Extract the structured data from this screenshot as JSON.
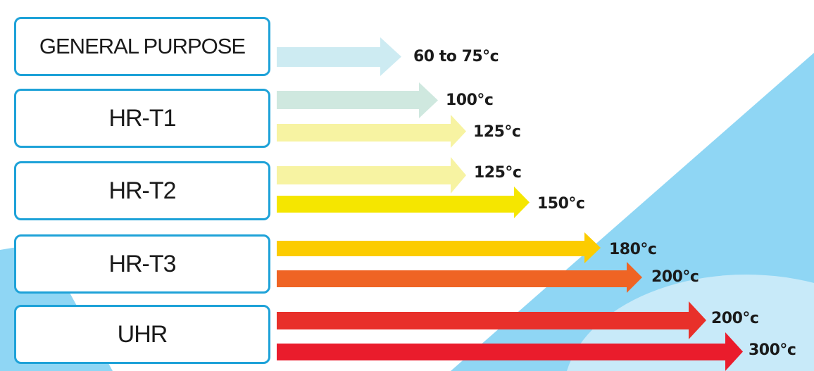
{
  "colors": {
    "border": "#1ea2d8",
    "bg_blue": "#8fd6f4",
    "bg_light_blue": "#c8eaf9"
  },
  "rows": [
    {
      "name": "GENERAL PURPOSE",
      "arrows": [
        {
          "label": "60 to 75°c",
          "color": "#cdebf2"
        }
      ]
    },
    {
      "name": "HR-T1",
      "arrows": [
        {
          "label": "100°c",
          "color": "#cfe8df"
        },
        {
          "label": "125°c",
          "color": "#f7f3a2"
        }
      ]
    },
    {
      "name": "HR-T2",
      "arrows": [
        {
          "label": "125°c",
          "color": "#f7f3a2"
        },
        {
          "label": "150°c",
          "color": "#f5e600"
        }
      ]
    },
    {
      "name": "HR-T3",
      "arrows": [
        {
          "label": "180°c",
          "color": "#fccc00"
        },
        {
          "label": "200°c",
          "color": "#ef6424"
        }
      ]
    },
    {
      "name": "UHR",
      "arrows": [
        {
          "label": "200°c",
          "color": "#e8302a"
        },
        {
          "label": "300°c",
          "color": "#ea1c2c"
        }
      ]
    }
  ]
}
